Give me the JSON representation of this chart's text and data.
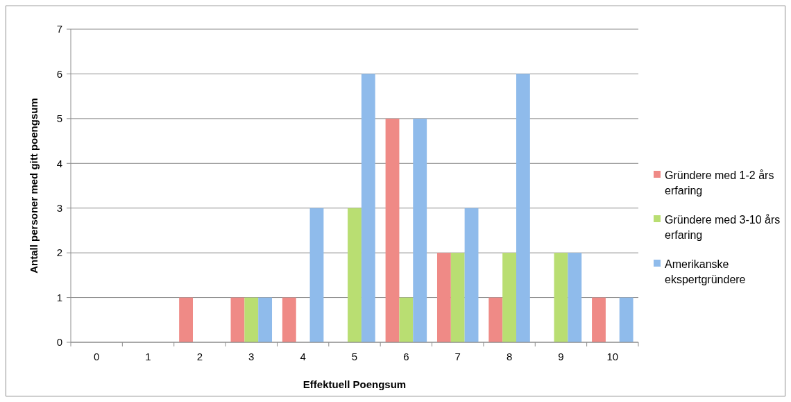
{
  "chart_data": {
    "type": "bar",
    "xlabel": "Effektuell Poengsum",
    "ylabel": "Antall personer med gitt poengsum",
    "categories": [
      "0",
      "1",
      "2",
      "3",
      "4",
      "5",
      "6",
      "7",
      "8",
      "9",
      "10"
    ],
    "series": [
      {
        "name": "Gründere med 1-2 års erfaring",
        "color": "#ef8a86",
        "values": [
          0,
          0,
          1,
          1,
          1,
          0,
          5,
          2,
          1,
          0,
          1
        ]
      },
      {
        "name": "Gründere med 3-10 års erfaring",
        "color": "#b9de72",
        "values": [
          0,
          0,
          0,
          1,
          0,
          3,
          1,
          2,
          2,
          2,
          0
        ]
      },
      {
        "name": "Amerikanske ekspertgründere",
        "color": "#8fbbeb",
        "values": [
          0,
          0,
          0,
          1,
          3,
          6,
          5,
          3,
          6,
          2,
          1
        ]
      }
    ],
    "ylim": [
      0,
      7
    ],
    "yticks": [
      0,
      1,
      2,
      3,
      4,
      5,
      6,
      7
    ],
    "grid": "y",
    "legend": "right"
  }
}
